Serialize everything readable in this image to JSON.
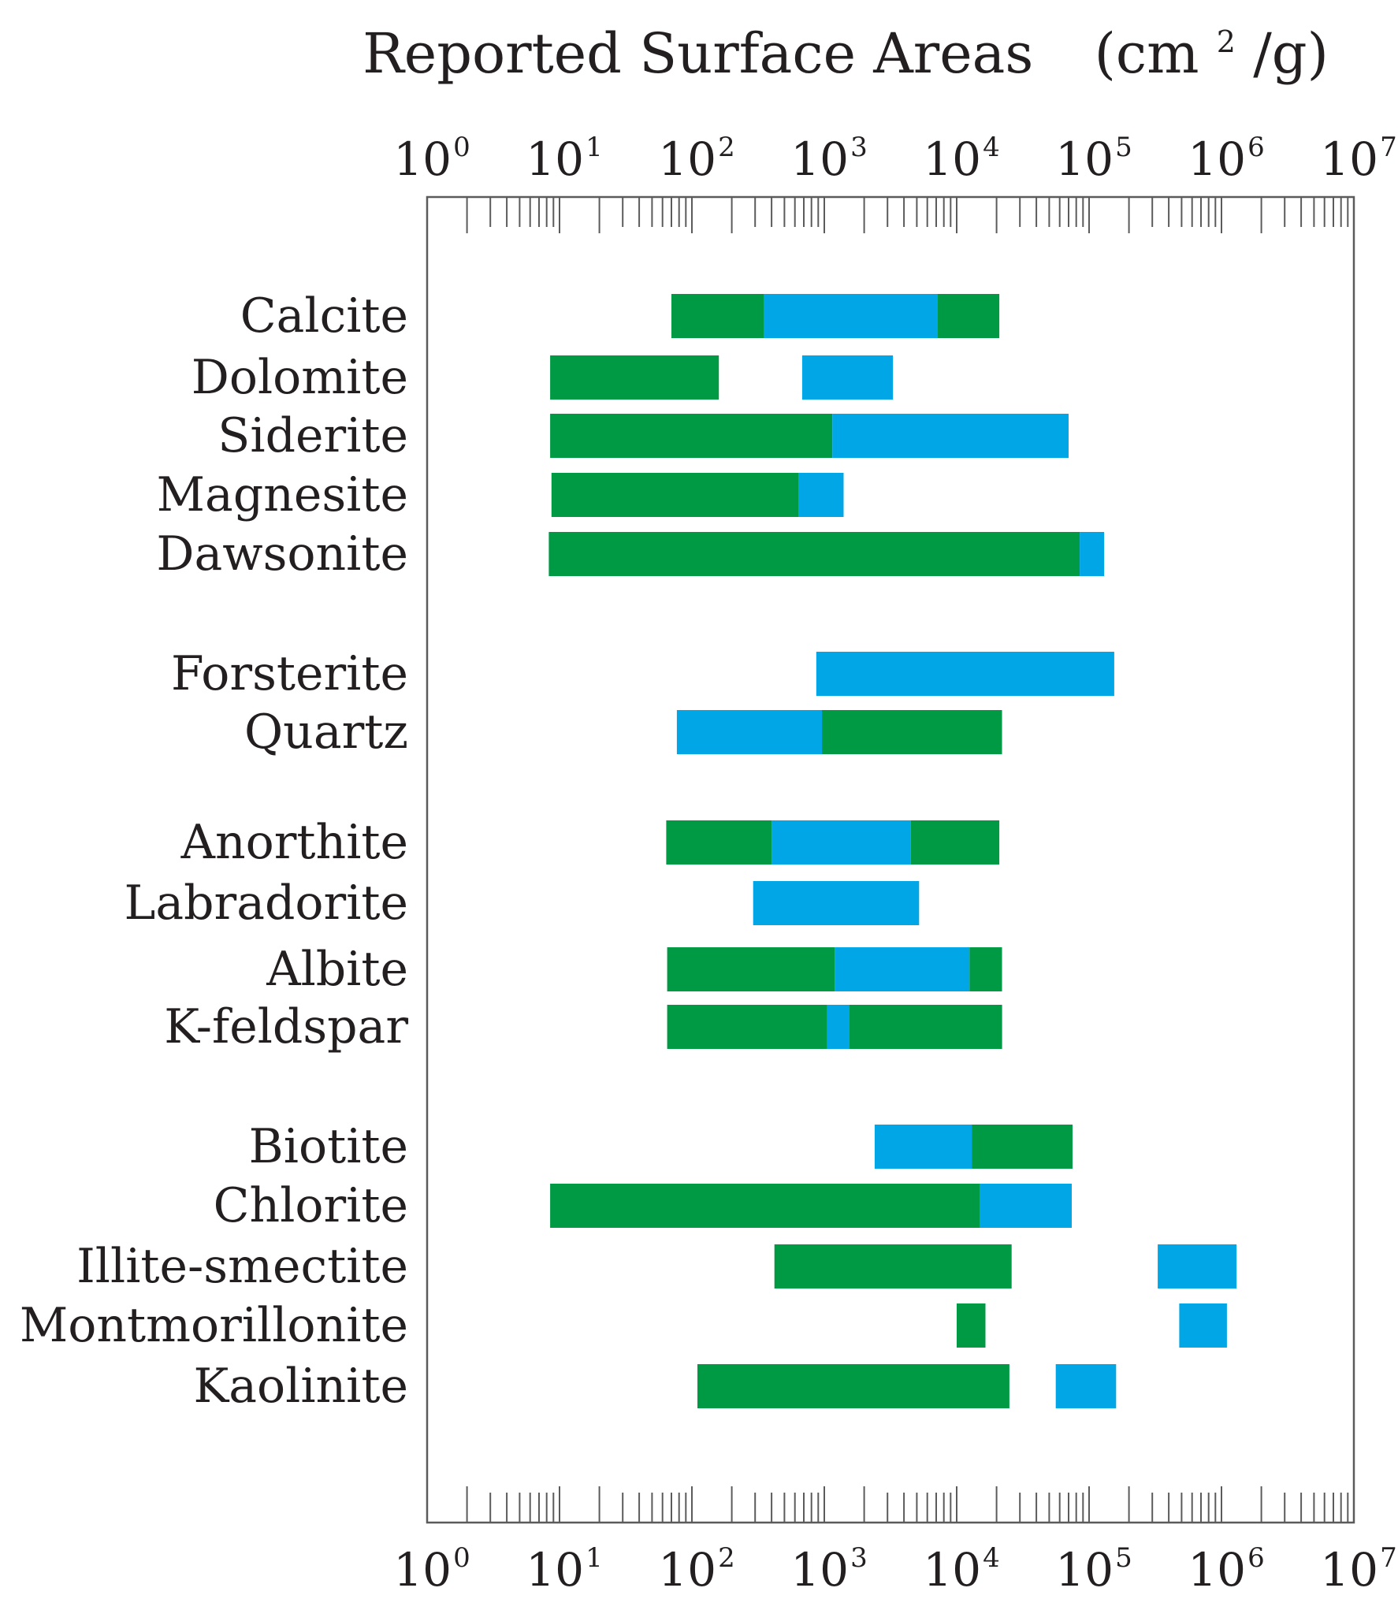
{
  "chart_data": {
    "type": "bar",
    "orientation": "horizontal",
    "title": "Reported Surface Areas",
    "title_units": "(cm²/g)",
    "title_units_base": "(cm",
    "title_units_sup": "2",
    "title_units_tail": "/g)",
    "x_scale": "log",
    "xlim": [
      1,
      10000000
    ],
    "x_ticks": [
      {
        "base": "10",
        "exp": "0"
      },
      {
        "base": "10",
        "exp": "1"
      },
      {
        "base": "10",
        "exp": "2"
      },
      {
        "base": "10",
        "exp": "3"
      },
      {
        "base": "10",
        "exp": "4"
      },
      {
        "base": "10",
        "exp": "5"
      },
      {
        "base": "10",
        "exp": "6"
      },
      {
        "base": "10",
        "exp": "7"
      }
    ],
    "x_axis_positions": [
      "top",
      "bottom"
    ],
    "grid": false,
    "legend": "none",
    "colors": {
      "green": "#009a44",
      "blue": "#00a6e6"
    },
    "categories": [
      "Calcite",
      "Dolomite",
      "Siderite",
      "Magnesite",
      "Dawsonite",
      "Forsterite",
      "Quartz",
      "Anorthite",
      "Labradorite",
      "Albite",
      "K-feldspar",
      "Biotite",
      "Chlorite",
      "Illite-smectite",
      "Montmorillonite",
      "Kaolinite"
    ],
    "groups": [
      [
        "Calcite",
        "Dolomite",
        "Siderite",
        "Magnesite",
        "Dawsonite"
      ],
      [
        "Forsterite",
        "Quartz"
      ],
      [
        "Anorthite",
        "Labradorite",
        "Albite",
        "K-feldspar"
      ],
      [
        "Biotite",
        "Chlorite",
        "Illite-smectite",
        "Montmorillonite",
        "Kaolinite"
      ]
    ],
    "bars": [
      {
        "category": "Calcite",
        "segments": [
          {
            "from": 70,
            "to": 350,
            "color": "green"
          },
          {
            "from": 350,
            "to": 7200,
            "color": "blue"
          },
          {
            "from": 7200,
            "to": 21000,
            "color": "green"
          }
        ]
      },
      {
        "category": "Dolomite",
        "segments": [
          {
            "from": 8.5,
            "to": 160,
            "color": "green"
          },
          {
            "from": 680,
            "to": 3300,
            "color": "blue"
          }
        ]
      },
      {
        "category": "Siderite",
        "segments": [
          {
            "from": 8.5,
            "to": 1150,
            "color": "green"
          },
          {
            "from": 1150,
            "to": 70000,
            "color": "blue"
          }
        ]
      },
      {
        "category": "Magnesite",
        "segments": [
          {
            "from": 8.7,
            "to": 640,
            "color": "green"
          },
          {
            "from": 640,
            "to": 1400,
            "color": "blue"
          }
        ]
      },
      {
        "category": "Dawsonite",
        "segments": [
          {
            "from": 8.3,
            "to": 85000,
            "color": "green"
          },
          {
            "from": 85000,
            "to": 130000,
            "color": "blue"
          }
        ]
      },
      {
        "category": "Forsterite",
        "segments": [
          {
            "from": 870,
            "to": 155000,
            "color": "blue"
          }
        ]
      },
      {
        "category": "Quartz",
        "segments": [
          {
            "from": 77,
            "to": 960,
            "color": "blue"
          },
          {
            "from": 960,
            "to": 22000,
            "color": "green"
          }
        ]
      },
      {
        "category": "Anorthite",
        "segments": [
          {
            "from": 64,
            "to": 400,
            "color": "green"
          },
          {
            "from": 400,
            "to": 4500,
            "color": "blue"
          },
          {
            "from": 4500,
            "to": 21000,
            "color": "green"
          }
        ]
      },
      {
        "category": "Labradorite",
        "segments": [
          {
            "from": 290,
            "to": 5200,
            "color": "blue"
          }
        ]
      },
      {
        "category": "Albite",
        "segments": [
          {
            "from": 65,
            "to": 1200,
            "color": "green"
          },
          {
            "from": 1200,
            "to": 12500,
            "color": "blue"
          },
          {
            "from": 12500,
            "to": 22000,
            "color": "green"
          }
        ]
      },
      {
        "category": "K-feldspar",
        "segments": [
          {
            "from": 65,
            "to": 1050,
            "color": "green"
          },
          {
            "from": 1050,
            "to": 1550,
            "color": "blue"
          },
          {
            "from": 1550,
            "to": 22000,
            "color": "green"
          }
        ]
      },
      {
        "category": "Biotite",
        "segments": [
          {
            "from": 2400,
            "to": 13000,
            "color": "blue"
          },
          {
            "from": 13000,
            "to": 75000,
            "color": "green"
          }
        ]
      },
      {
        "category": "Chlorite",
        "segments": [
          {
            "from": 8.5,
            "to": 15000,
            "color": "green"
          },
          {
            "from": 15000,
            "to": 74000,
            "color": "blue"
          }
        ]
      },
      {
        "category": "Illite-smectite",
        "segments": [
          {
            "from": 420,
            "to": 26000,
            "color": "green"
          },
          {
            "from": 330000,
            "to": 1300000,
            "color": "blue"
          }
        ]
      },
      {
        "category": "Montmorillonite",
        "segments": [
          {
            "from": 10000,
            "to": 16500,
            "color": "green"
          },
          {
            "from": 480000,
            "to": 1100000,
            "color": "blue"
          }
        ]
      },
      {
        "category": "Kaolinite",
        "segments": [
          {
            "from": 110,
            "to": 25000,
            "color": "green"
          },
          {
            "from": 56000,
            "to": 160000,
            "color": "blue"
          }
        ]
      }
    ]
  }
}
